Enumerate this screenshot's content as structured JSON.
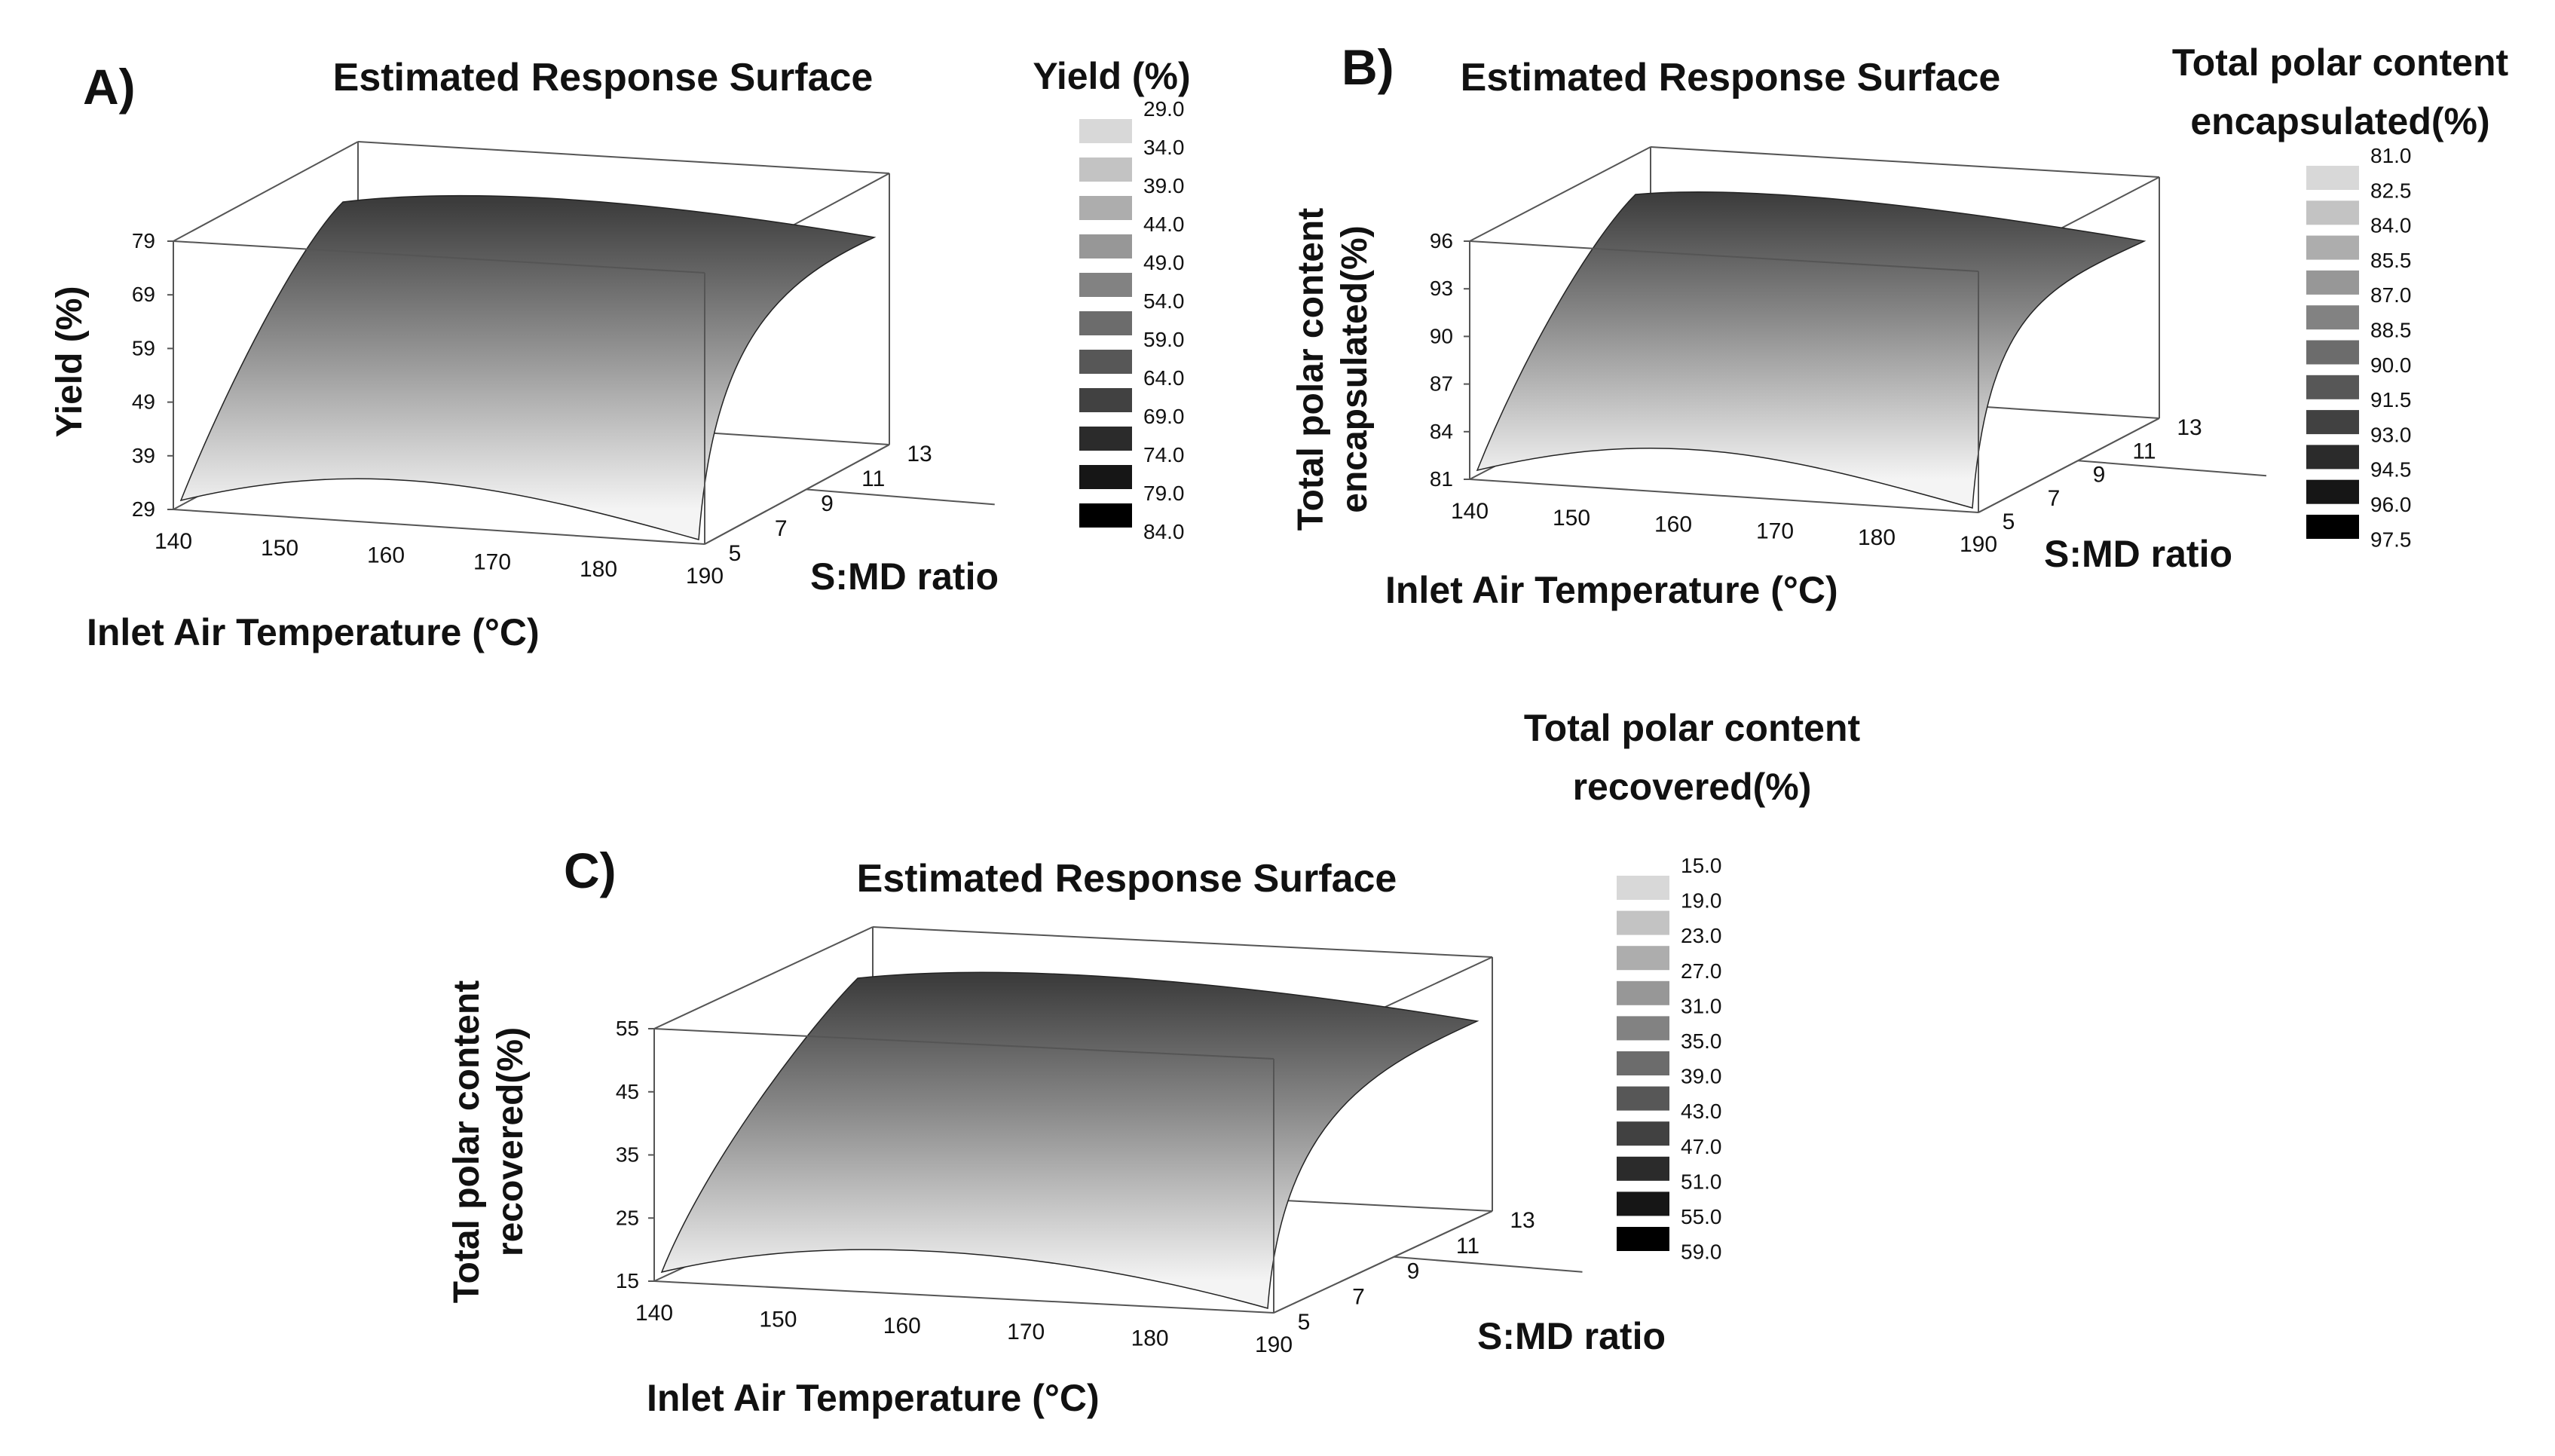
{
  "chart_data": [
    {
      "type": "surface3d",
      "panel": "A)",
      "title": "Estimated Response Surface",
      "xlabel": "Inlet Air Temperature (°C)",
      "ylabel": "S:MD ratio",
      "zlabel": "Yield (%)",
      "x_ticks": [
        "140",
        "150",
        "160",
        "170",
        "180",
        "190"
      ],
      "y_ticks": [
        "5",
        "7",
        "9",
        "11",
        "13"
      ],
      "z_ticks": [
        "29",
        "39",
        "49",
        "59",
        "69",
        "79"
      ],
      "legend_title": "Yield (%)",
      "legend_values": [
        "29.0",
        "34.0",
        "39.0",
        "44.0",
        "49.0",
        "54.0",
        "59.0",
        "64.0",
        "69.0",
        "74.0",
        "79.0",
        "84.0"
      ]
    },
    {
      "type": "surface3d",
      "panel": "B)",
      "title": "Estimated Response Surface",
      "xlabel": "Inlet Air Temperature (°C)",
      "ylabel": "S:MD ratio",
      "zlabel_lines": [
        "Total polar content",
        "encapsulated(%)"
      ],
      "x_ticks": [
        "140",
        "150",
        "160",
        "170",
        "180",
        "190"
      ],
      "y_ticks": [
        "5",
        "7",
        "9",
        "11",
        "13"
      ],
      "z_ticks": [
        "81",
        "84",
        "87",
        "90",
        "93",
        "96"
      ],
      "legend_title_lines": [
        "Total polar content",
        "encapsulated(%)"
      ],
      "legend_values": [
        "81.0",
        "82.5",
        "84.0",
        "85.5",
        "87.0",
        "88.5",
        "90.0",
        "91.5",
        "93.0",
        "94.5",
        "96.0",
        "97.5"
      ]
    },
    {
      "type": "surface3d",
      "panel": "C)",
      "title": "Estimated Response Surface",
      "xlabel": "Inlet Air Temperature (°C)",
      "ylabel": "S:MD ratio",
      "zlabel_lines": [
        "Total polar content",
        "recovered(%)"
      ],
      "x_ticks": [
        "140",
        "150",
        "160",
        "170",
        "180",
        "190"
      ],
      "y_ticks": [
        "5",
        "7",
        "9",
        "11",
        "13"
      ],
      "z_ticks": [
        "15",
        "25",
        "35",
        "45",
        "55"
      ],
      "legend_title_lines": [
        "Total polar content",
        "recovered(%)"
      ],
      "legend_values": [
        "15.0",
        "19.0",
        "23.0",
        "27.0",
        "31.0",
        "35.0",
        "39.0",
        "43.0",
        "47.0",
        "51.0",
        "55.0",
        "59.0"
      ]
    }
  ]
}
